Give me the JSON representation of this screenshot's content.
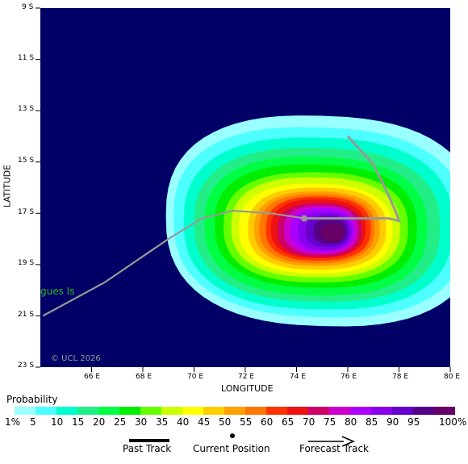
{
  "map": {
    "x_axis_title": "LONGITUDE",
    "y_axis_title": "LATITUDE",
    "lat_ticks": [
      "9 S",
      "11 S",
      "13 S",
      "15 S",
      "17 S",
      "19 S",
      "21 S",
      "23 S"
    ],
    "lon_ticks": [
      "66 E",
      "68 E",
      "70 E",
      "72 E",
      "74 E",
      "76 E",
      "78 E",
      "80 E"
    ],
    "place_label": "gues Is",
    "watermark": "© UCL 2026",
    "colors": {
      "ocean": "#000066",
      "track": "#999999",
      "place_label": "#22bb22",
      "watermark": "#9a9a9a"
    },
    "past_track": [
      [
        64.1,
        -21.0
      ],
      [
        66.5,
        -19.7
      ],
      [
        69.0,
        -18.0
      ],
      [
        70.3,
        -17.2
      ],
      [
        71.5,
        -16.9
      ],
      [
        73.0,
        -17.0
      ],
      [
        74.3,
        -17.2
      ]
    ],
    "forecast_track": [
      [
        74.3,
        -17.2
      ],
      [
        75.8,
        -17.2
      ],
      [
        77.6,
        -17.2
      ],
      [
        78.0,
        -17.3
      ],
      [
        77.9,
        -17.0
      ],
      [
        77.5,
        -16.1
      ],
      [
        77.0,
        -15.1
      ],
      [
        76.0,
        -14.0
      ]
    ],
    "current_position": [
      74.3,
      -17.2
    ]
  },
  "legend": {
    "title": "Probability",
    "labels": [
      "1%",
      "5",
      "10",
      "15",
      "20",
      "25",
      "30",
      "35",
      "40",
      "45",
      "50",
      "55",
      "60",
      "65",
      "70",
      "75",
      "80",
      "85",
      "90",
      "95",
      "100%"
    ],
    "colors": [
      "#99ffff",
      "#4dffff",
      "#00ffcc",
      "#22ee88",
      "#00ff44",
      "#00ee00",
      "#66ff00",
      "#ccff00",
      "#ffff00",
      "#ffcc00",
      "#ffa000",
      "#ff7700",
      "#ff3300",
      "#ee1111",
      "#cc0066",
      "#cc00cc",
      "#aa00ff",
      "#8800ee",
      "#6600cc",
      "#550088",
      "#660066"
    ]
  },
  "key": {
    "past_track": "Past Track",
    "current_position": "Current Position",
    "forecast_track": "Forecast Track"
  }
}
